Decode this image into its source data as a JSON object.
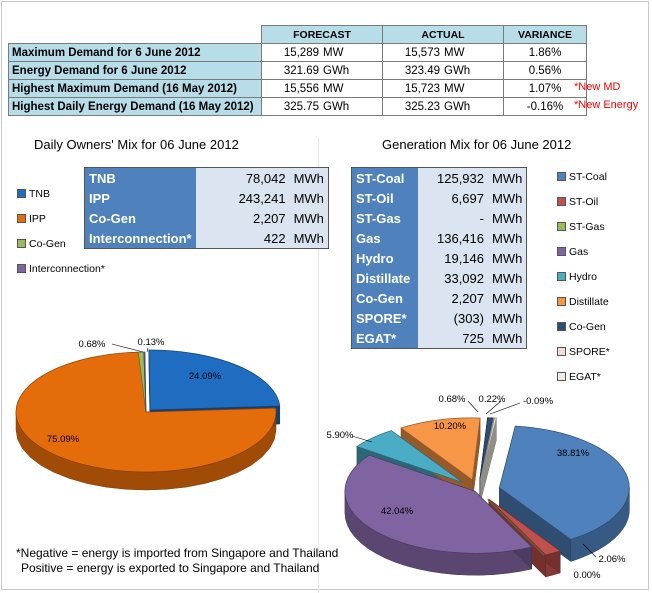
{
  "summary": {
    "headers": [
      "FORECAST",
      "ACTUAL",
      "VARIANCE"
    ],
    "rows": [
      {
        "label": "Maximum Demand for 6 June 2012",
        "forecast": "15,289",
        "forecast_unit": "MW",
        "actual": "15,573",
        "actual_unit": "MW",
        "variance": "1.86%",
        "note": ""
      },
      {
        "label": "Energy Demand for 6 June 2012",
        "forecast": "321.69",
        "forecast_unit": "GWh",
        "actual": "323.49",
        "actual_unit": "GWh",
        "variance": "0.56%",
        "note": ""
      },
      {
        "label": "Highest Maximum Demand (16 May 2012)",
        "forecast": "15,556",
        "forecast_unit": "MW",
        "actual": "15,723",
        "actual_unit": "MW",
        "variance": "1.07%",
        "note": "*New MD"
      },
      {
        "label": "Highest Daily Energy Demand (16 May 2012)",
        "forecast": "325.75",
        "forecast_unit": "GWh",
        "actual": "325.23",
        "actual_unit": "GWh",
        "variance": "-0.16%",
        "note": "*New Energy"
      }
    ]
  },
  "owners": {
    "title": "Daily Owners' Mix for 06 June 2012",
    "table": [
      {
        "name": "TNB",
        "value": "78,042",
        "unit": "MWh"
      },
      {
        "name": "IPP",
        "value": "243,241",
        "unit": "MWh"
      },
      {
        "name": "Co-Gen",
        "value": "2,207",
        "unit": "MWh"
      },
      {
        "name": "Interconnection*",
        "value": "422",
        "unit": "MWh"
      }
    ],
    "legend": [
      "TNB",
      "IPP",
      "Co-Gen",
      "Interconnection*"
    ]
  },
  "generation": {
    "title": "Generation Mix for 06 June 2012",
    "table": [
      {
        "name": "ST-Coal",
        "value": "125,932",
        "unit": "MWh"
      },
      {
        "name": "ST-Oil",
        "value": "6,697",
        "unit": "MWh"
      },
      {
        "name": "ST-Gas",
        "value": "-",
        "unit": "MWh"
      },
      {
        "name": "Gas",
        "value": "136,416",
        "unit": "MWh"
      },
      {
        "name": "Hydro",
        "value": "19,146",
        "unit": "MWh"
      },
      {
        "name": "Distillate",
        "value": "33,092",
        "unit": "MWh"
      },
      {
        "name": "Co-Gen",
        "value": "2,207",
        "unit": "MWh"
      },
      {
        "name": "SPORE*",
        "value": "(303)",
        "unit": "MWh"
      },
      {
        "name": "EGAT*",
        "value": "725",
        "unit": "MWh"
      }
    ],
    "legend": [
      "ST-Coal",
      "ST-Oil",
      "ST-Gas",
      "Gas",
      "Hydro",
      "Distillate",
      "Co-Gen",
      "SPORE*",
      "EGAT*"
    ]
  },
  "footnote": {
    "line1": "*Negative = energy is imported from Singapore and Thailand",
    "line2": "Positive = energy is exported to Singapore and Thailand"
  },
  "chart_data": [
    {
      "type": "pie",
      "title": "Daily Owners' Mix for 06 June 2012",
      "categories": [
        "TNB",
        "IPP",
        "Co-Gen",
        "Interconnection*"
      ],
      "values": [
        24.09,
        75.09,
        0.68,
        0.13
      ],
      "labels": [
        "24.09%",
        "75.09%",
        "0.68%",
        "0.13%"
      ],
      "colors": [
        "#1f6dc1",
        "#e46c0a",
        "#9bbb59",
        "#8064a2"
      ],
      "legend": "left"
    },
    {
      "type": "pie",
      "title": "Generation Mix for 06 June 2012",
      "categories": [
        "ST-Coal",
        "ST-Oil",
        "ST-Gas",
        "Gas",
        "Hydro",
        "Distillate",
        "Co-Gen",
        "SPORE*",
        "EGAT*"
      ],
      "values": [
        38.81,
        2.06,
        0.0,
        42.04,
        5.9,
        10.2,
        0.68,
        -0.09,
        0.22
      ],
      "labels": [
        "38.81%",
        "2.06%",
        "0.00%",
        "42.04%",
        "5.90%",
        "10.20%",
        "0.68%",
        "-0.09%",
        "0.22%"
      ],
      "colors": [
        "#4f81bd",
        "#c0504d",
        "#9bbb59",
        "#8064a2",
        "#4bacc6",
        "#f79646",
        "#2c4d75",
        "#f2dcdb",
        "#eeece1"
      ],
      "legend": "right"
    }
  ]
}
